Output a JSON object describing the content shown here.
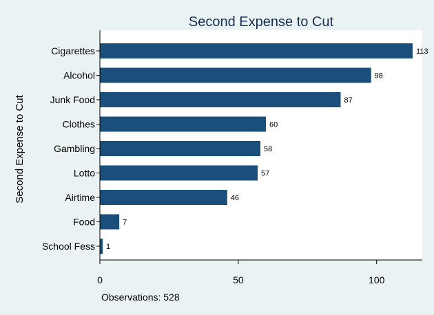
{
  "chart_data": {
    "type": "bar",
    "orientation": "horizontal",
    "title": "Second Expense to Cut",
    "xlabel": "",
    "ylabel": "Second Expense to Cut",
    "categories": [
      "Cigarettes",
      "Alcohol",
      "Junk Food",
      "Clothes",
      "Gambling",
      "Lotto",
      "Airtime",
      "Food",
      "School Fess"
    ],
    "values": [
      113,
      98,
      87,
      60,
      58,
      57,
      46,
      7,
      1
    ],
    "xlim": [
      0,
      116.5
    ],
    "xticks": [
      0,
      50,
      100
    ],
    "grid": false,
    "legend": "none",
    "note": "Observations: 528",
    "colors": {
      "bar": "#1a4f7c",
      "background": "#eaf2f3",
      "plot_background": "#ffffff",
      "title": "#1a2e55"
    }
  }
}
